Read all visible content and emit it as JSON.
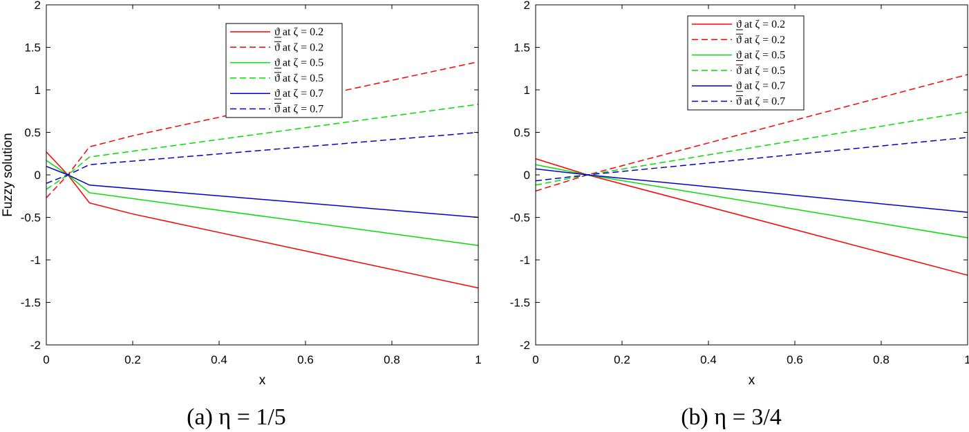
{
  "chart_data": [
    {
      "type": "line",
      "caption": "(a) η = 1/5",
      "xlabel": "x",
      "ylabel": "Fuzzy solution",
      "xlim": [
        0,
        1
      ],
      "ylim": [
        -2,
        2
      ],
      "xticks": [
        0,
        0.2,
        0.4,
        0.6,
        0.8,
        1
      ],
      "xtick_labels": [
        "0",
        "0.2",
        "0.4",
        "0.6",
        "0.8",
        "1"
      ],
      "yticks": [
        -2,
        -1.5,
        -1,
        -0.5,
        0,
        0.5,
        1,
        1.5,
        2
      ],
      "ytick_labels": [
        "-2",
        "-1.5",
        "-1",
        "-0.5",
        "0",
        "0.5",
        "1",
        "1.5",
        "2"
      ],
      "legend_position": "top-right",
      "series": [
        {
          "name": "ϑ at ζ = 0.2",
          "bar": "lower",
          "color": "#ff0000",
          "dash": "solid",
          "x": [
            0,
            0.05,
            0.1,
            0.2,
            1
          ],
          "y": [
            0.27,
            0,
            -0.33,
            -0.46,
            -1.33
          ]
        },
        {
          "name": "ϑ at ζ = 0.2",
          "bar": "upper",
          "color": "#ff0000",
          "dash": "dashed",
          "x": [
            0,
            0.05,
            0.1,
            0.2,
            1
          ],
          "y": [
            -0.27,
            0,
            0.33,
            0.46,
            1.33
          ]
        },
        {
          "name": "ϑ at ζ = 0.5",
          "bar": "lower",
          "color": "#00e000",
          "dash": "solid",
          "x": [
            0,
            0.05,
            0.1,
            1
          ],
          "y": [
            0.17,
            0,
            -0.21,
            -0.83
          ]
        },
        {
          "name": "ϑ at ζ = 0.5",
          "bar": "upper",
          "color": "#00e000",
          "dash": "dashed",
          "x": [
            0,
            0.05,
            0.1,
            1
          ],
          "y": [
            -0.17,
            0,
            0.21,
            0.83
          ]
        },
        {
          "name": "ϑ at ζ = 0.7",
          "bar": "lower",
          "color": "#0000cc",
          "dash": "solid",
          "x": [
            0,
            0.05,
            0.1,
            1
          ],
          "y": [
            0.1,
            0,
            -0.12,
            -0.5
          ]
        },
        {
          "name": "ϑ at ζ = 0.7",
          "bar": "upper",
          "color": "#0000cc",
          "dash": "dashed",
          "x": [
            0,
            0.05,
            0.1,
            1
          ],
          "y": [
            -0.1,
            0,
            0.12,
            0.5
          ]
        }
      ]
    },
    {
      "type": "line",
      "caption": "(b) η = 3/4",
      "xlabel": "x",
      "ylabel": "",
      "xlim": [
        0,
        1
      ],
      "ylim": [
        -2,
        2
      ],
      "xticks": [
        0,
        0.2,
        0.4,
        0.6,
        0.8,
        1
      ],
      "xtick_labels": [
        "0",
        "0.2",
        "0.4",
        "0.6",
        "0.8",
        "1"
      ],
      "yticks": [
        -2,
        -1.5,
        -1,
        -0.5,
        0,
        0.5,
        1,
        1.5,
        2
      ],
      "ytick_labels": [
        "-2",
        "-1.5",
        "-1",
        "-0.5",
        "0",
        "0.5",
        "1",
        "1.5",
        "2"
      ],
      "legend_position": "top-center",
      "series": [
        {
          "name": "ϑ at ζ = 0.2",
          "bar": "lower",
          "color": "#ff0000",
          "dash": "solid",
          "x": [
            0,
            0.12,
            1
          ],
          "y": [
            0.19,
            0,
            -1.18
          ]
        },
        {
          "name": "ϑ at ζ = 0.2",
          "bar": "upper",
          "color": "#ff0000",
          "dash": "dashed",
          "x": [
            0,
            0.12,
            1
          ],
          "y": [
            -0.19,
            0,
            1.18
          ]
        },
        {
          "name": "ϑ at ζ = 0.5",
          "bar": "lower",
          "color": "#00e000",
          "dash": "solid",
          "x": [
            0,
            0.12,
            1
          ],
          "y": [
            0.12,
            0,
            -0.74
          ]
        },
        {
          "name": "ϑ at ζ = 0.5",
          "bar": "upper",
          "color": "#00e000",
          "dash": "dashed",
          "x": [
            0,
            0.12,
            1
          ],
          "y": [
            -0.12,
            0,
            0.74
          ]
        },
        {
          "name": "ϑ at ζ = 0.7",
          "bar": "lower",
          "color": "#0000cc",
          "dash": "solid",
          "x": [
            0,
            0.12,
            1
          ],
          "y": [
            0.07,
            0,
            -0.44
          ]
        },
        {
          "name": "ϑ at ζ = 0.7",
          "bar": "upper",
          "color": "#0000cc",
          "dash": "dashed",
          "x": [
            0,
            0.12,
            1
          ],
          "y": [
            -0.07,
            0,
            0.44
          ]
        }
      ]
    }
  ]
}
